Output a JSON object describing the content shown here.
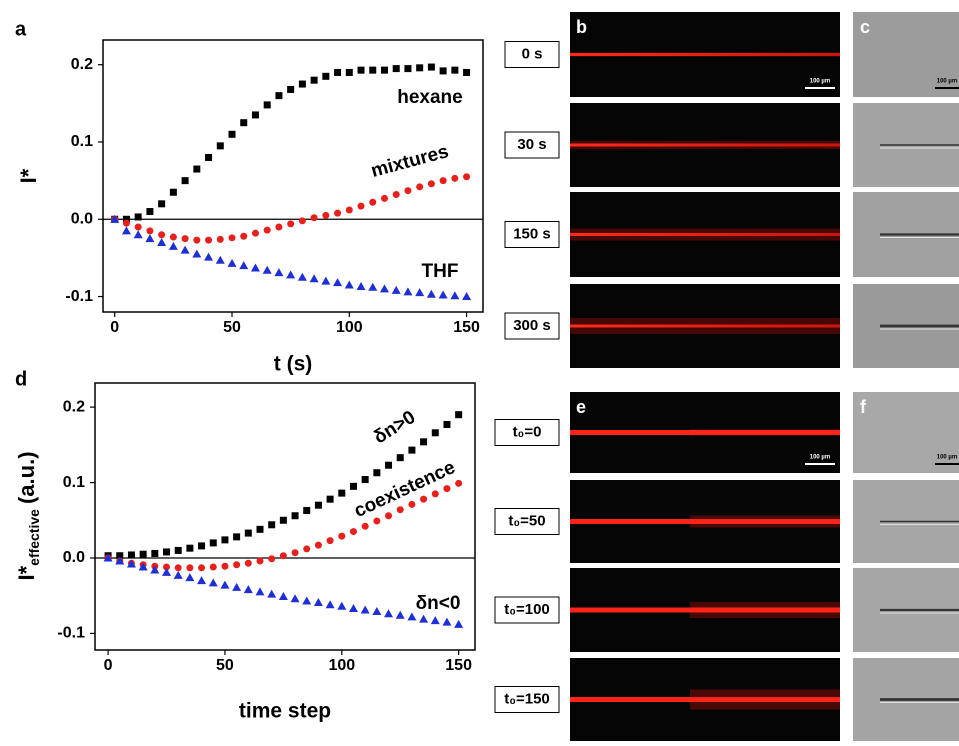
{
  "chart_data": [
    {
      "type": "scatter",
      "panel": "a",
      "xlabel": "t (s)",
      "ylabel": "I*",
      "x": [
        0,
        5,
        10,
        15,
        20,
        25,
        30,
        35,
        40,
        45,
        50,
        55,
        60,
        65,
        70,
        75,
        80,
        85,
        90,
        95,
        100,
        105,
        110,
        115,
        120,
        125,
        130,
        135,
        140,
        145,
        150
      ],
      "xlim": [
        -5,
        157
      ],
      "ylim": [
        -0.12,
        0.232
      ],
      "xticks": [
        0,
        50,
        100,
        150
      ],
      "yticks": [
        -0.1,
        {
          "value": 0,
          "label": "0.0"
        },
        0.1,
        0.2
      ],
      "zero_line": true,
      "series": [
        {
          "name": "hexane",
          "color": "#000000",
          "marker": "square",
          "values": [
            0,
            0,
            0.003,
            0.01,
            0.02,
            0.035,
            0.05,
            0.065,
            0.08,
            0.095,
            0.11,
            0.125,
            0.135,
            0.148,
            0.16,
            0.168,
            0.175,
            0.18,
            0.185,
            0.19,
            0.19,
            0.193,
            0.193,
            0.193,
            0.195,
            0.195,
            0.196,
            0.197,
            0.192,
            0.193,
            0.19
          ]
        },
        {
          "name": "mixtures",
          "color": "#e8201c",
          "marker": "circle",
          "values": [
            0,
            -0.005,
            -0.01,
            -0.015,
            -0.02,
            -0.023,
            -0.025,
            -0.027,
            -0.027,
            -0.026,
            -0.024,
            -0.022,
            -0.018,
            -0.014,
            -0.01,
            -0.006,
            -0.002,
            0.002,
            0.005,
            0.008,
            0.012,
            0.017,
            0.022,
            0.027,
            0.032,
            0.037,
            0.042,
            0.046,
            0.05,
            0.053,
            0.055
          ]
        },
        {
          "name": "THF",
          "color": "#1f2fd6",
          "marker": "triangle",
          "values": [
            0,
            -0.015,
            -0.02,
            -0.025,
            -0.03,
            -0.035,
            -0.04,
            -0.045,
            -0.049,
            -0.053,
            -0.057,
            -0.06,
            -0.063,
            -0.066,
            -0.069,
            -0.072,
            -0.075,
            -0.077,
            -0.08,
            -0.082,
            -0.085,
            -0.087,
            -0.088,
            -0.09,
            -0.092,
            -0.094,
            -0.095,
            -0.097,
            -0.098,
            -0.099,
            -0.1
          ]
        }
      ]
    },
    {
      "type": "scatter",
      "panel": "d",
      "xlabel": "time step",
      "ylabel": {
        "main": "I*",
        "sub": "effective",
        "rest": "(a.u.)"
      },
      "x": [
        0,
        5,
        10,
        15,
        20,
        25,
        30,
        35,
        40,
        45,
        50,
        55,
        60,
        65,
        70,
        75,
        80,
        85,
        90,
        95,
        100,
        105,
        110,
        115,
        120,
        125,
        130,
        135,
        140,
        145,
        150
      ],
      "xlim": [
        -5.6,
        157
      ],
      "ylim": [
        -0.122,
        0.232
      ],
      "xticks": [
        0,
        50,
        100,
        150
      ],
      "yticks": [
        -0.1,
        {
          "value": 0,
          "label": "0.0"
        },
        0.1,
        0.2
      ],
      "zero_line": true,
      "series": [
        {
          "name": "δn>0",
          "color": "#000000",
          "marker": "square",
          "values": [
            0.003,
            0.003,
            0.004,
            0.005,
            0.006,
            0.008,
            0.01,
            0.013,
            0.016,
            0.02,
            0.024,
            0.028,
            0.033,
            0.038,
            0.044,
            0.05,
            0.056,
            0.063,
            0.07,
            0.078,
            0.086,
            0.095,
            0.104,
            0.113,
            0.123,
            0.133,
            0.143,
            0.154,
            0.166,
            0.177,
            0.19
          ]
        },
        {
          "name": "coexistence",
          "color": "#e8201c",
          "marker": "circle",
          "values": [
            0,
            -0.004,
            -0.007,
            -0.009,
            -0.011,
            -0.012,
            -0.013,
            -0.013,
            -0.013,
            -0.012,
            -0.011,
            -0.009,
            -0.007,
            -0.004,
            -0.001,
            0.003,
            0.007,
            0.012,
            0.017,
            0.023,
            0.029,
            0.035,
            0.042,
            0.049,
            0.056,
            0.064,
            0.071,
            0.078,
            0.085,
            0.092,
            0.099
          ]
        },
        {
          "name": "δn<0",
          "color": "#1f2fd6",
          "marker": "triangle",
          "values": [
            0,
            -0.004,
            -0.008,
            -0.012,
            -0.016,
            -0.019,
            -0.023,
            -0.026,
            -0.03,
            -0.033,
            -0.036,
            -0.039,
            -0.042,
            -0.045,
            -0.048,
            -0.051,
            -0.054,
            -0.057,
            -0.059,
            -0.062,
            -0.064,
            -0.067,
            -0.069,
            -0.071,
            -0.074,
            -0.076,
            -0.078,
            -0.081,
            -0.083,
            -0.085,
            -0.088
          ]
        }
      ]
    }
  ],
  "image_panels": {
    "labels": [
      "b",
      "c",
      "e",
      "f"
    ],
    "b_times": [
      "0 s",
      "30 s",
      "150 s",
      "300 s"
    ],
    "e_times": [
      "t₀=0",
      "t₀=50",
      "t₀=100",
      "t₀=150"
    ],
    "scale_bar": "100 µm"
  }
}
